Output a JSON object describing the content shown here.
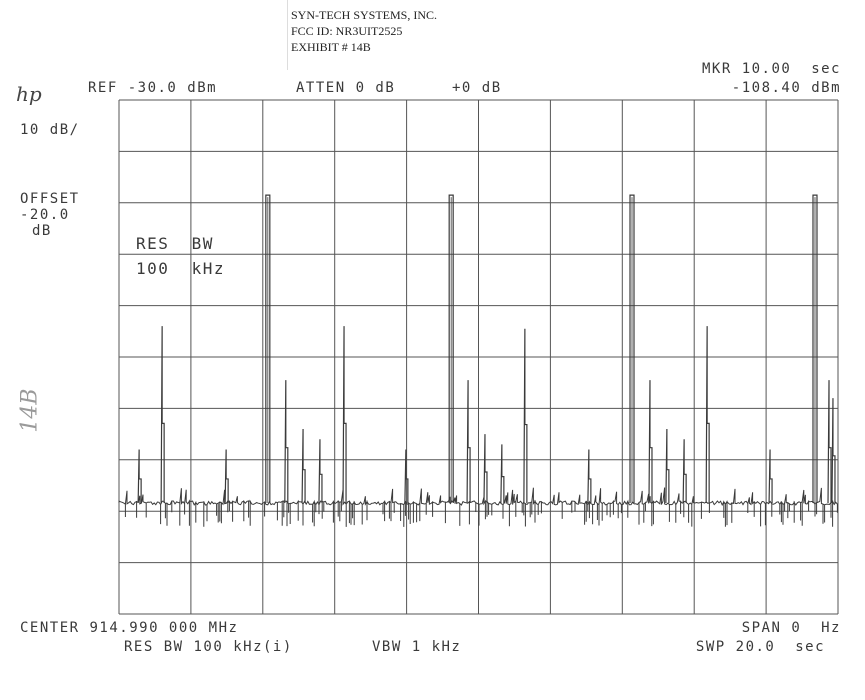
{
  "header": {
    "line1": "SYN-TECH SYSTEMS, INC.",
    "line2": "FCC ID: NR3UIT2525",
    "line3": "EXHIBIT # 14B"
  },
  "logo": "hp",
  "top": {
    "ref": "REF -30.0 dBm",
    "atten": "ATTEN 0 dB",
    "offset_db": "+0 dB",
    "marker_time": "MKR 10.00  sec",
    "marker_level": "-108.40 dBm"
  },
  "left": {
    "scale": "10 dB/",
    "offset_label": "OFFSET",
    "offset_value": "-20.0",
    "offset_unit": "dB"
  },
  "annotation": {
    "res_bw_label": "RES  BW",
    "res_bw_value": "100  kHz"
  },
  "bottom": {
    "center": "CENTER 914.990 000 MHz",
    "span": "SPAN 0  Hz",
    "res_bw": "RES BW 100 kHz(i)",
    "vbw": "VBW 1 kHz",
    "sweep": "SWP 20.0  sec"
  },
  "handwritten": "14B",
  "chart_data": {
    "type": "line",
    "title": "",
    "xlabel": "",
    "ylabel": "",
    "x_unit": "sec",
    "y_unit": "dBm",
    "xlim": [
      0,
      20
    ],
    "ylim": [
      -130,
      -30
    ],
    "grid": true,
    "x_divisions": 10,
    "y_divisions": 10,
    "noise_floor_dbm": -108.4,
    "trace_color": "#3a3a3a",
    "pulses": [
      {
        "t": 0.56,
        "dbm": -98,
        "kind": "spike"
      },
      {
        "t": 1.2,
        "dbm": -74,
        "kind": "spike"
      },
      {
        "t": 2.98,
        "dbm": -98,
        "kind": "spike"
      },
      {
        "t": 4.14,
        "dbm": -48.5,
        "kind": "pulse"
      },
      {
        "t": 4.64,
        "dbm": -84.5,
        "kind": "spike"
      },
      {
        "t": 5.12,
        "dbm": -94,
        "kind": "spike"
      },
      {
        "t": 5.59,
        "dbm": -96,
        "kind": "spike"
      },
      {
        "t": 6.26,
        "dbm": -74,
        "kind": "spike"
      },
      {
        "t": 7.98,
        "dbm": -98,
        "kind": "spike"
      },
      {
        "t": 9.24,
        "dbm": -48.5,
        "kind": "pulse"
      },
      {
        "t": 9.71,
        "dbm": -84.5,
        "kind": "spike"
      },
      {
        "t": 10.18,
        "dbm": -95,
        "kind": "spike"
      },
      {
        "t": 10.65,
        "dbm": -97,
        "kind": "spike"
      },
      {
        "t": 11.29,
        "dbm": -74.5,
        "kind": "spike"
      },
      {
        "t": 13.07,
        "dbm": -98,
        "kind": "spike"
      },
      {
        "t": 14.27,
        "dbm": -48.5,
        "kind": "pulse"
      },
      {
        "t": 14.77,
        "dbm": -84.5,
        "kind": "spike"
      },
      {
        "t": 15.24,
        "dbm": -94,
        "kind": "spike"
      },
      {
        "t": 15.72,
        "dbm": -96,
        "kind": "spike"
      },
      {
        "t": 16.36,
        "dbm": -74,
        "kind": "spike"
      },
      {
        "t": 18.11,
        "dbm": -98,
        "kind": "spike"
      },
      {
        "t": 19.36,
        "dbm": -48.5,
        "kind": "pulse"
      },
      {
        "t": 19.75,
        "dbm": -84.5,
        "kind": "spike"
      },
      {
        "t": 19.86,
        "dbm": -88,
        "kind": "spike"
      }
    ]
  }
}
